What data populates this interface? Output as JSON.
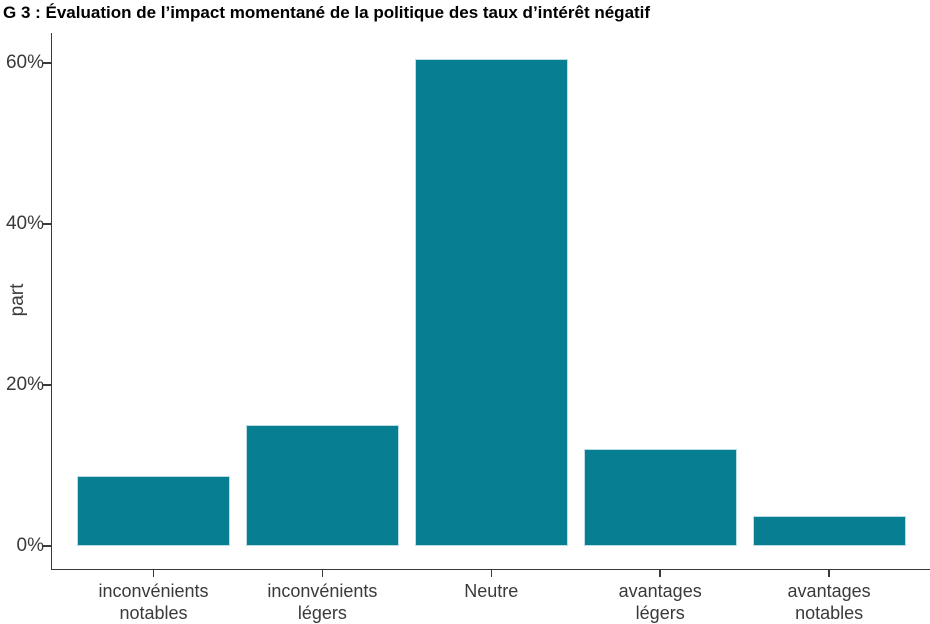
{
  "chart_data": {
    "type": "bar",
    "title": "G 3 : Évaluation de l’impact momentané de la politique des taux d’intérêt négatif",
    "ylabel": "part",
    "xlabel": "",
    "categories": [
      "inconvénients\nnotables",
      "inconvénients\nlégers",
      "Neutre",
      "avantages\nlégers",
      "avantages\nnotables"
    ],
    "values": [
      8.7,
      15,
      60.5,
      12,
      3.7
    ],
    "unit": "%",
    "yticks": [
      0,
      20,
      40,
      60
    ],
    "ytick_labels": [
      "0%",
      "20%",
      "40%",
      "60%"
    ],
    "ylim": [
      0,
      63.7
    ],
    "grid": false,
    "legend": false,
    "bar_color": "#087e92",
    "bar_border_color": "#bcdde3",
    "axis_color": "#3a3a3a",
    "text_color": "#3a3a3a"
  }
}
